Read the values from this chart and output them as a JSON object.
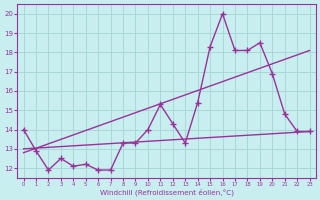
{
  "xlabel": "Windchill (Refroidissement éolien,°C)",
  "background_color": "#c8eef0",
  "line_color": "#993399",
  "grid_color": "#aad8d8",
  "x_values": [
    0,
    1,
    2,
    3,
    4,
    5,
    6,
    7,
    8,
    9,
    10,
    11,
    12,
    13,
    14,
    15,
    16,
    17,
    18,
    19,
    20,
    21,
    22,
    23
  ],
  "line1": [
    14.0,
    12.9,
    11.9,
    12.5,
    12.1,
    12.2,
    11.9,
    11.9,
    13.3,
    13.3,
    14.0,
    15.3,
    14.3,
    13.3,
    15.4,
    18.3,
    20.0,
    18.1,
    18.1,
    18.5,
    16.9,
    14.8,
    13.9,
    13.9
  ],
  "line2_x": [
    0,
    23
  ],
  "line2": [
    13.0,
    13.9
  ],
  "line3_x": [
    0,
    23
  ],
  "line3": [
    12.8,
    18.1
  ],
  "xlim": [
    -0.5,
    23.5
  ],
  "ylim": [
    11.5,
    20.5
  ],
  "yticks": [
    12,
    13,
    14,
    15,
    16,
    17,
    18,
    19,
    20
  ],
  "xticks": [
    0,
    1,
    2,
    3,
    4,
    5,
    6,
    7,
    8,
    9,
    10,
    11,
    12,
    13,
    14,
    15,
    16,
    17,
    18,
    19,
    20,
    21,
    22,
    23
  ],
  "markersize": 4,
  "linewidth": 1.0
}
